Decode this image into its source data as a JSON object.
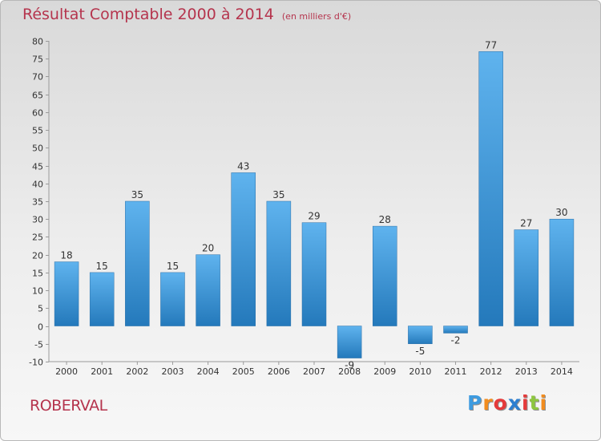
{
  "header": {
    "title": "Résultat Comptable 2000 à 2014",
    "subtitle": "(en milliers d'€)"
  },
  "footer": {
    "commune": "ROBERVAL",
    "logo_letters": [
      "P",
      "r",
      "o",
      "x",
      "i",
      "t",
      "i"
    ],
    "logo_colors": [
      "#3d9be0",
      "#f28c1e",
      "#e53a3a",
      "#2e7fd0",
      "#e53a3a",
      "#8dc63f",
      "#f28c1e"
    ]
  },
  "chart_data": {
    "type": "bar",
    "categories": [
      "2000",
      "2001",
      "2002",
      "2003",
      "2004",
      "2005",
      "2006",
      "2007",
      "2008",
      "2009",
      "2010",
      "2011",
      "2012",
      "2013",
      "2014"
    ],
    "values": [
      18,
      15,
      35,
      15,
      20,
      43,
      35,
      29,
      -9,
      28,
      -5,
      -2,
      77,
      27,
      30
    ],
    "title": "Résultat Comptable 2000 à 2014",
    "xlabel": "",
    "ylabel": "",
    "ylim": [
      -10,
      80
    ],
    "yticks": [
      -10,
      -5,
      0,
      5,
      10,
      15,
      20,
      25,
      30,
      35,
      40,
      45,
      50,
      55,
      60,
      65,
      70,
      75,
      80
    ],
    "grid": false,
    "legend": "none",
    "bar_color_top": "#5fb3ee",
    "bar_color_bottom": "#2479bb"
  }
}
